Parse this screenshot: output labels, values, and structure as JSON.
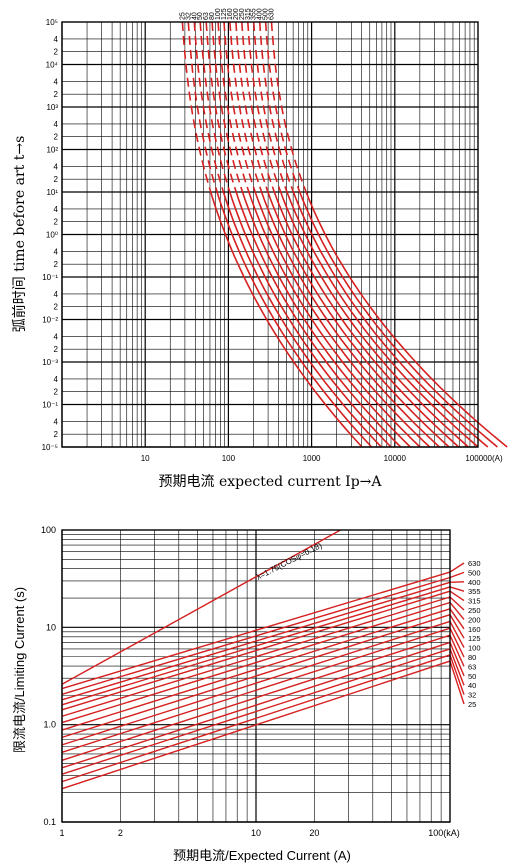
{
  "chart_data": [
    {
      "type": "line",
      "xlabel": "预期电流 expected current Ip→A",
      "ylabel": "弧前时间 time before art t→s",
      "x_scale": "log",
      "y_scale": "log",
      "xlim": [
        1,
        100000
      ],
      "ylim": [
        1e-05,
        100000
      ],
      "x_ticks": [
        "10",
        "100",
        "1000",
        "10000",
        "100000(A)"
      ],
      "y_ticks": [
        "10^-5",
        "2",
        "4",
        "10^-1",
        "2",
        "4",
        "10^-3",
        "2",
        "4",
        "10^-2",
        "2",
        "4",
        "10^-1",
        "2",
        "4",
        "10^0",
        "2",
        "4",
        "10^1",
        "2",
        "4",
        "10^2",
        "2",
        "4",
        "10^3",
        "2",
        "4",
        "10^4",
        "2",
        "4",
        "10^5"
      ],
      "y_tick_labels": [
        "10⁻⁵",
        "2",
        "4",
        "10⁻¹",
        "2",
        "4",
        "10⁻³",
        "2",
        "4",
        "10⁻²",
        "2",
        "4",
        "10⁻¹",
        "2",
        "4",
        "10⁰",
        "2",
        "4",
        "10¹",
        "2",
        "4",
        "10²",
        "2",
        "4",
        "10³",
        "2",
        "4",
        "10⁴",
        "2",
        "4",
        "10⁵"
      ],
      "grid": true,
      "series": [
        {
          "name": "25",
          "rated": 25
        },
        {
          "name": "32",
          "rated": 32
        },
        {
          "name": "40",
          "rated": 40
        },
        {
          "name": "50",
          "rated": 50
        },
        {
          "name": "63",
          "rated": 63
        },
        {
          "name": "80",
          "rated": 80
        },
        {
          "name": "100",
          "rated": 100
        },
        {
          "name": "125",
          "rated": 125
        },
        {
          "name": "160",
          "rated": 160
        },
        {
          "name": "200",
          "rated": 200
        },
        {
          "name": "250",
          "rated": 250
        },
        {
          "name": "315",
          "rated": 315
        },
        {
          "name": "355",
          "rated": 355
        },
        {
          "name": "400",
          "rated": 400
        },
        {
          "name": "500",
          "rated": 500
        },
        {
          "name": "630",
          "rated": 630
        }
      ]
    },
    {
      "type": "line",
      "xlabel": "预期电流/Expected Current (A)",
      "ylabel": "限流电流/Limiting Current (s)",
      "x_scale": "log",
      "y_scale": "log",
      "xlim": [
        1,
        100
      ],
      "ylim": [
        0.1,
        100
      ],
      "x_ticks": [
        "1",
        "2",
        "10",
        "20",
        "100(kA)"
      ],
      "y_ticks": [
        "0.1",
        "1.0",
        "10",
        "100"
      ],
      "grid": true,
      "annotation": "λ=1.75(COSφ=0.18)",
      "series": [
        {
          "name": "25",
          "y_at_1": 0.22,
          "y_at_100": 4.5
        },
        {
          "name": "32",
          "y_at_1": 0.26,
          "y_at_100": 5.2
        },
        {
          "name": "40",
          "y_at_1": 0.31,
          "y_at_100": 6.0
        },
        {
          "name": "50",
          "y_at_1": 0.36,
          "y_at_100": 7.0
        },
        {
          "name": "63",
          "y_at_1": 0.43,
          "y_at_100": 8.3
        },
        {
          "name": "80",
          "y_at_1": 0.52,
          "y_at_100": 9.8
        },
        {
          "name": "100",
          "y_at_1": 0.62,
          "y_at_100": 11.5
        },
        {
          "name": "125",
          "y_at_1": 0.74,
          "y_at_100": 13.5
        },
        {
          "name": "160",
          "y_at_1": 0.88,
          "y_at_100": 15.5
        },
        {
          "name": "200",
          "y_at_1": 1.05,
          "y_at_100": 18.0
        },
        {
          "name": "250",
          "y_at_1": 1.22,
          "y_at_100": 20.5
        },
        {
          "name": "315",
          "y_at_1": 1.42,
          "y_at_100": 23.5
        },
        {
          "name": "355",
          "y_at_1": 1.6,
          "y_at_100": 26.0
        },
        {
          "name": "400",
          "y_at_1": 1.8,
          "y_at_100": 29.0
        },
        {
          "name": "500",
          "y_at_1": 2.05,
          "y_at_100": 32.5
        },
        {
          "name": "630",
          "y_at_1": 2.35,
          "y_at_100": 37.0
        }
      ],
      "envelope": {
        "name": "λ=1.75(COSφ=0.18)",
        "y_at_1": 2.6,
        "y_at_100": 420
      }
    }
  ]
}
